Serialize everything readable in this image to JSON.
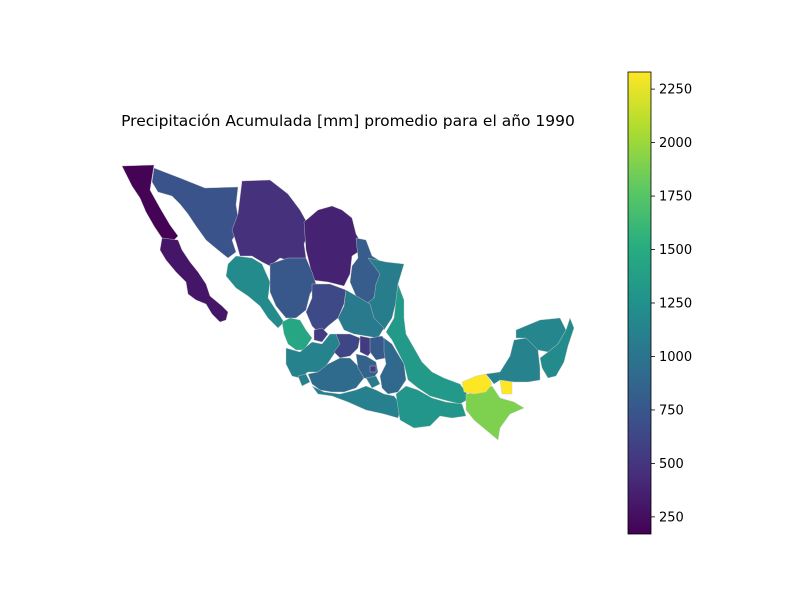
{
  "chart_data": {
    "type": "choropleth",
    "title": "Precipitación Acumulada [mm] promedio para el año 1990",
    "colormap": "viridis",
    "colorbar": {
      "min": 170,
      "max": 2330,
      "ticks": [
        250,
        500,
        750,
        1000,
        1250,
        1500,
        1750,
        2000,
        2250
      ]
    },
    "regions": [
      {
        "id": "baja-california",
        "value": 180
      },
      {
        "id": "baja-california-sur",
        "value": 300
      },
      {
        "id": "sonora",
        "value": 720
      },
      {
        "id": "chihuahua",
        "value": 470
      },
      {
        "id": "coahuila",
        "value": 380
      },
      {
        "id": "nuevo-leon",
        "value": 800
      },
      {
        "id": "tamaulipas",
        "value": 1080
      },
      {
        "id": "sinaloa",
        "value": 1200
      },
      {
        "id": "durango",
        "value": 760
      },
      {
        "id": "zacatecas",
        "value": 650
      },
      {
        "id": "san-luis-potosi",
        "value": 1050
      },
      {
        "id": "nayarit",
        "value": 1450
      },
      {
        "id": "aguascalientes",
        "value": 560
      },
      {
        "id": "jalisco",
        "value": 1130
      },
      {
        "id": "guanajuato",
        "value": 620
      },
      {
        "id": "queretaro",
        "value": 540
      },
      {
        "id": "hidalgo",
        "value": 780
      },
      {
        "id": "colima",
        "value": 1100
      },
      {
        "id": "michoacan",
        "value": 920
      },
      {
        "id": "mexico",
        "value": 850
      },
      {
        "id": "cdmx",
        "value": 560
      },
      {
        "id": "tlaxcala",
        "value": 620
      },
      {
        "id": "morelos",
        "value": 1060
      },
      {
        "id": "puebla",
        "value": 900
      },
      {
        "id": "veracruz",
        "value": 1320
      },
      {
        "id": "guerrero",
        "value": 1100
      },
      {
        "id": "oaxaca",
        "value": 1300
      },
      {
        "id": "chiapas",
        "value": 1900
      },
      {
        "id": "tabasco",
        "value": 2330
      },
      {
        "id": "campeche",
        "value": 1130
      },
      {
        "id": "yucatan",
        "value": 1150
      },
      {
        "id": "quintana-roo",
        "value": 1200
      }
    ]
  }
}
